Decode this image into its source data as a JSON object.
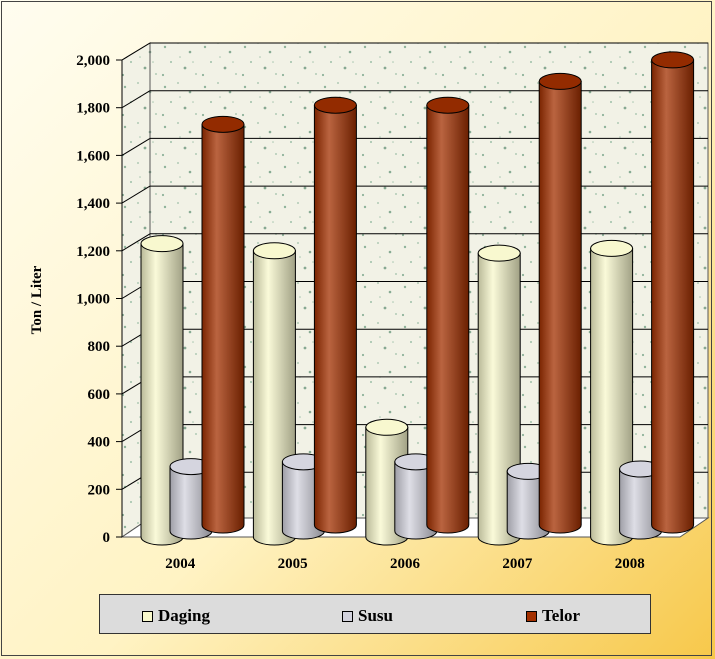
{
  "chart_data": {
    "type": "bar",
    "style": "3d-cylinder",
    "categories": [
      "2004",
      "2005",
      "2006",
      "2007",
      "2008"
    ],
    "series": [
      {
        "name": "Daging",
        "values": [
          1230,
          1200,
          460,
          1190,
          1210
        ],
        "color": "#f8f8cc"
      },
      {
        "name": "Susu",
        "values": [
          270,
          290,
          290,
          250,
          260
        ],
        "color": "#d3d3dd"
      },
      {
        "name": "Telor",
        "values": [
          1680,
          1760,
          1760,
          1860,
          1950
        ],
        "color": "#a33000"
      }
    ],
    "ylabel": "Ton / Liter",
    "ylim": [
      0,
      2000
    ],
    "yticks": [
      "0",
      "200",
      "400",
      "600",
      "800",
      "1,000",
      "1,200",
      "1,400",
      "1,600",
      "1,800",
      "2,000"
    ],
    "grid": true,
    "legend": "bottom"
  }
}
